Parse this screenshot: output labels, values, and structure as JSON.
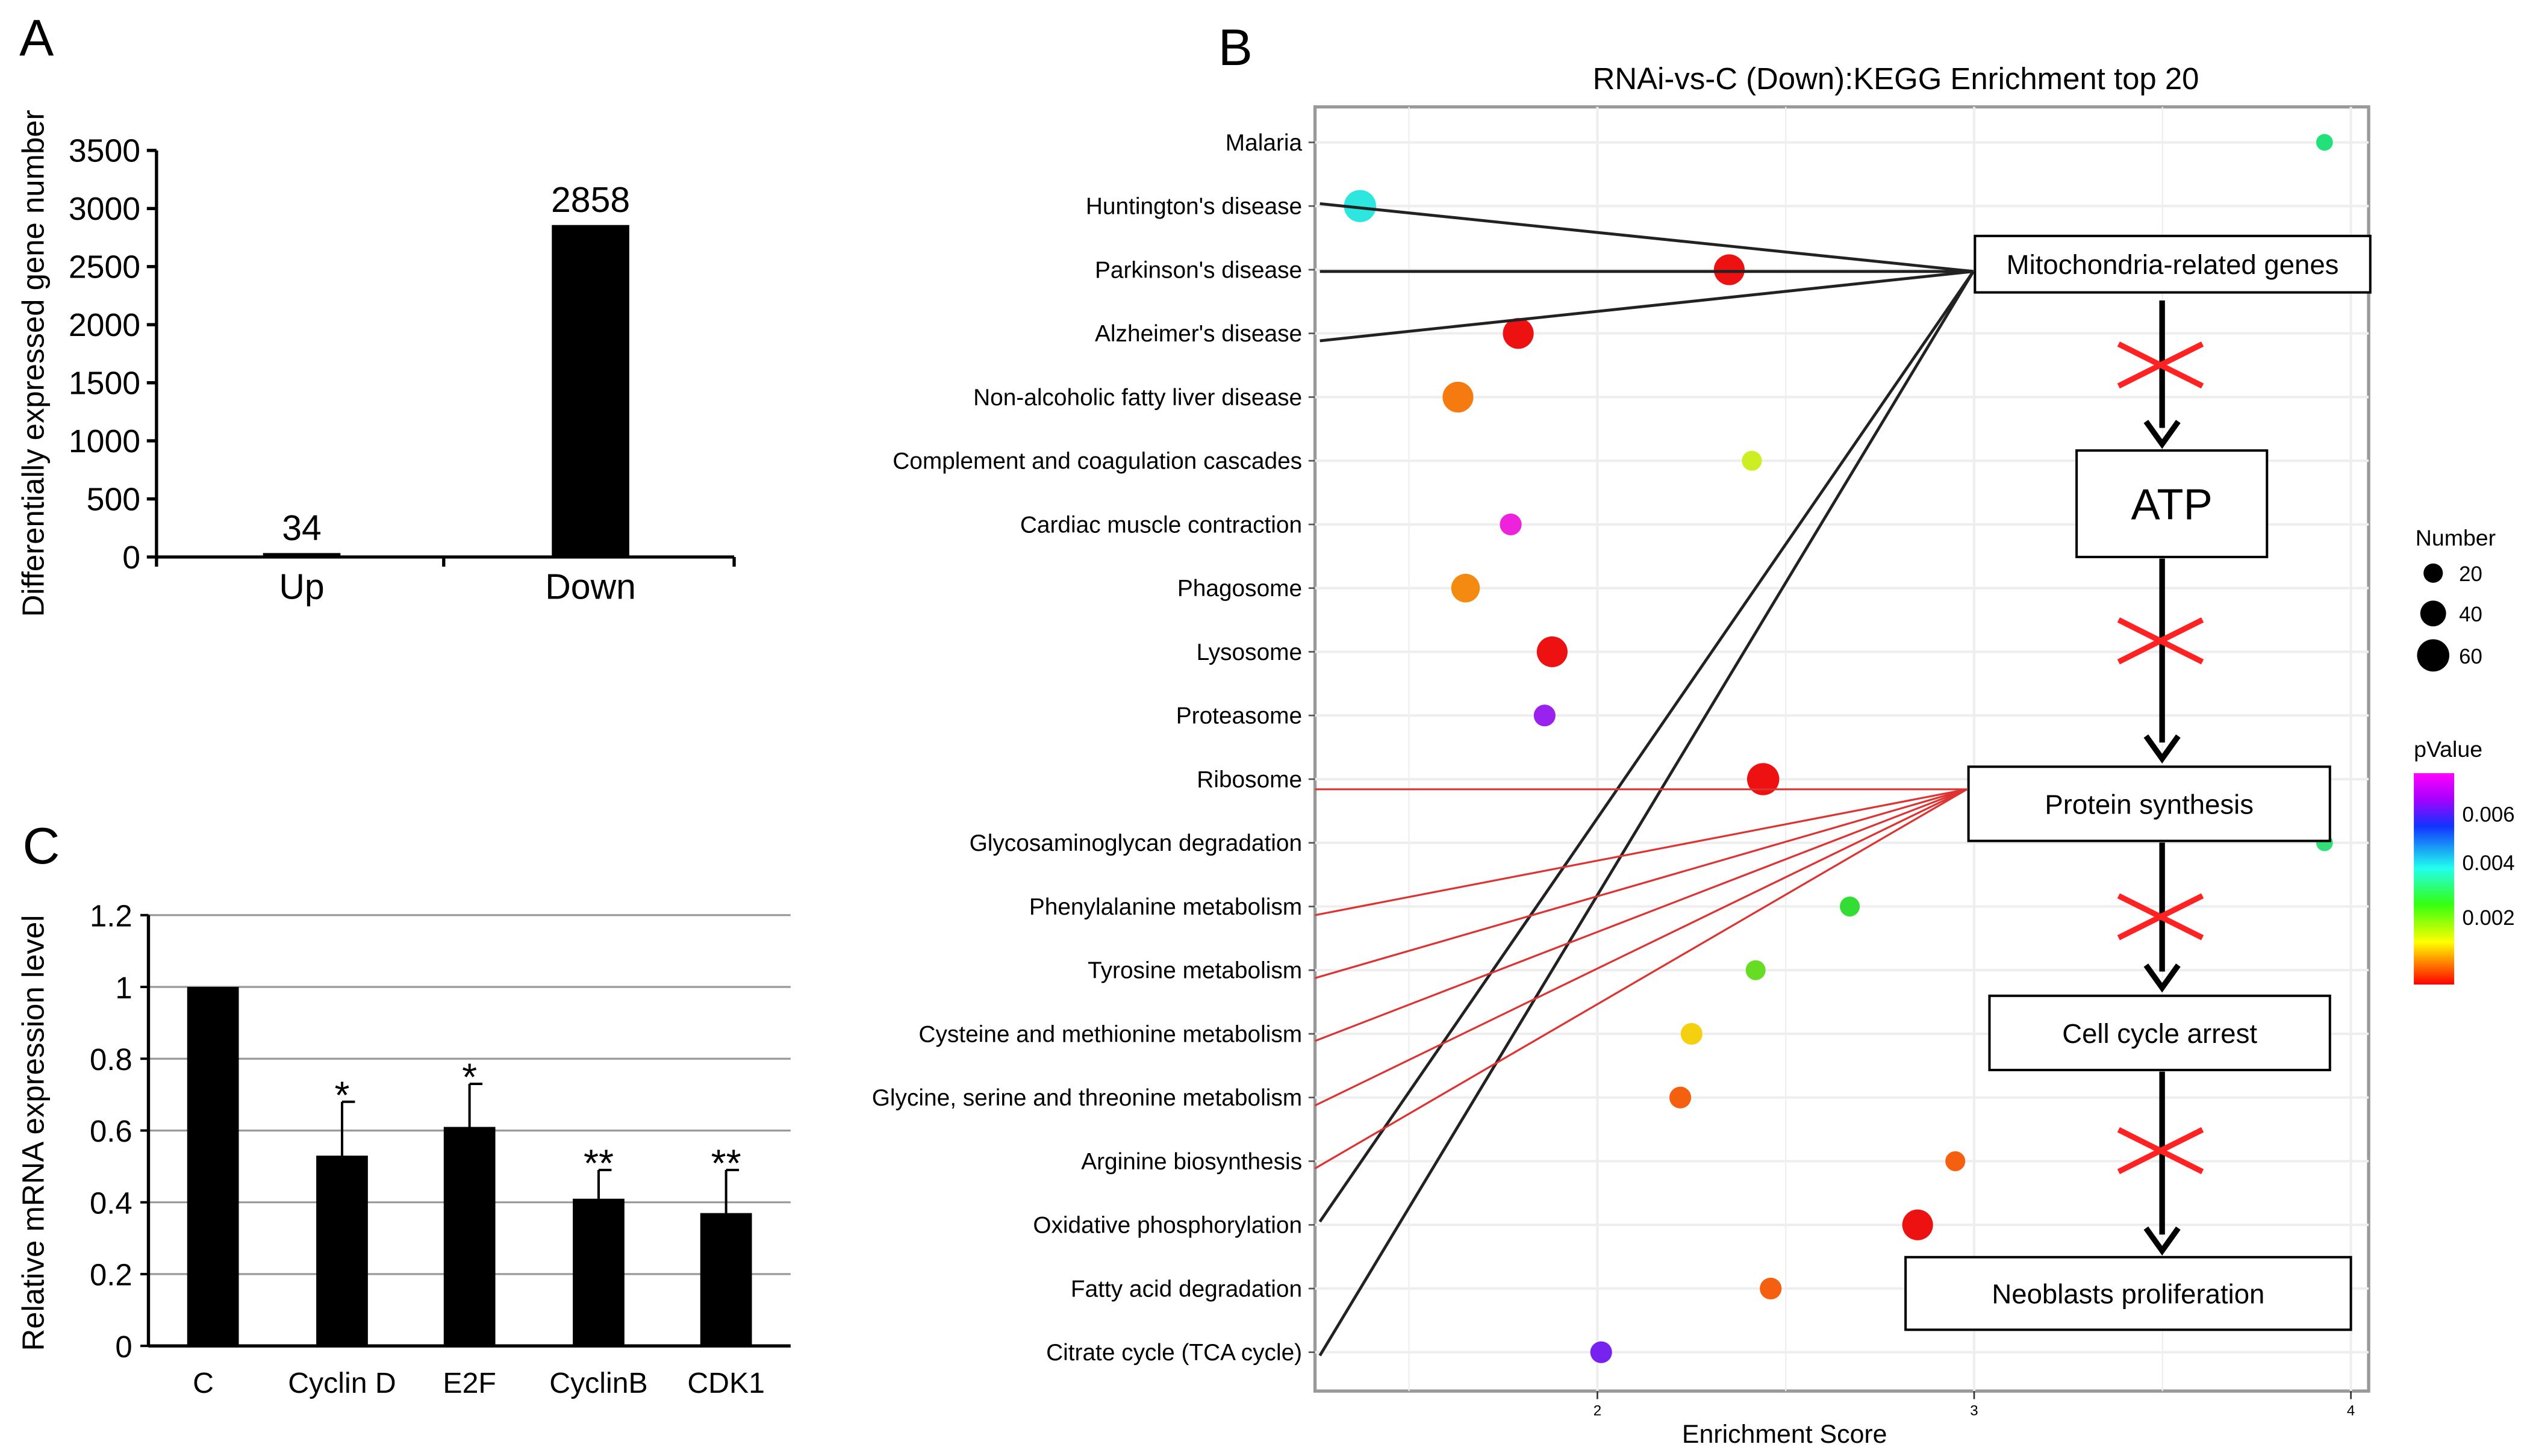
{
  "panel_letters": {
    "a": "A",
    "b": "B",
    "c": "C"
  },
  "chart_data": [
    {
      "type": "bar",
      "panel": "A",
      "categories": [
        "Up",
        "Down"
      ],
      "values": [
        34,
        2858
      ],
      "data_labels": [
        "34",
        "2858"
      ],
      "ylabel": "Differentially expressed gene number",
      "ylim": [
        0,
        3500
      ],
      "yticks": [
        "0",
        "500",
        "1000",
        "1500",
        "2000",
        "2500",
        "3000",
        "3500"
      ]
    },
    {
      "type": "scatter",
      "panel": "B",
      "title": "RNAi-vs-C (Down):KEGG Enrichment top 20",
      "xlabel": "Enrichment Score",
      "xlim": [
        1.25,
        4.05
      ],
      "xticks": [
        "2",
        "3",
        "4"
      ],
      "categories": [
        "Malaria",
        "Huntington's disease",
        "Parkinson's disease",
        "Alzheimer's disease",
        "Non-alcoholic fatty liver disease",
        "Complement and coagulation cascades",
        "Cardiac muscle contraction",
        "Phagosome",
        "Lysosome",
        "Proteasome",
        "Ribosome",
        "Glycosaminoglycan degradation",
        "Phenylalanine metabolism",
        "Tyrosine metabolism",
        "Cysteine and methionine metabolism",
        "Glycine, serine and threonine metabolism",
        "Arginine biosynthesis",
        "Oxidative phosphorylation",
        "Fatty acid degradation",
        "Citrate cycle (TCA cycle)"
      ],
      "x": [
        3.93,
        1.37,
        2.35,
        1.79,
        1.63,
        2.41,
        1.77,
        1.65,
        1.88,
        1.86,
        2.44,
        3.93,
        2.67,
        2.42,
        2.25,
        2.22,
        2.95,
        2.85,
        2.46,
        2.01
      ],
      "number": [
        8,
        62,
        55,
        55,
        55,
        15,
        20,
        45,
        55,
        20,
        62,
        8,
        15,
        15,
        20,
        20,
        15,
        55,
        20,
        20
      ],
      "pvalue": [
        0.0035,
        0.004,
        0.0001,
        0.0001,
        0.0004,
        0.0019,
        0.0072,
        0.0007,
        0.0001,
        0.0066,
        0.0001,
        0.0028,
        0.0025,
        0.0022,
        0.0014,
        0.0005,
        0.0004,
        0.0001,
        0.0005,
        0.0065
      ],
      "colors": [
        "#22e07a",
        "#2ee6e0",
        "#ee1111",
        "#ee1111",
        "#f57a10",
        "#ccee22",
        "#ee22dd",
        "#f58a10",
        "#ee1111",
        "#9922ee",
        "#ee1111",
        "#33dd77",
        "#33dd33",
        "#66dd22",
        "#f5d010",
        "#f56010",
        "#f56010",
        "#ee1111",
        "#f56010",
        "#7722ee"
      ],
      "legend": {
        "size_title": "Number",
        "size_labels": [
          "20",
          "40",
          "60"
        ],
        "color_title": "pValue",
        "color_labels": [
          "0.006",
          "0.004",
          "0.002"
        ]
      },
      "annotations": {
        "mito": "Mitochondria-related genes",
        "atp": "ATP",
        "protein": "Protein synthesis",
        "cellcycle": "Cell cycle arrest",
        "neoblasts": "Neoblasts proliferation"
      }
    },
    {
      "type": "bar",
      "panel": "C",
      "categories": [
        "C",
        "Cyclin D",
        "E2F",
        "CyclinB",
        "CDK1"
      ],
      "values": [
        1.0,
        0.53,
        0.61,
        0.41,
        0.37
      ],
      "error": [
        0,
        0.15,
        0.12,
        0.08,
        0.12
      ],
      "significance": [
        "",
        "*",
        "*",
        "**",
        "**"
      ],
      "ylabel": "Relative mRNA expression level",
      "ylim": [
        0,
        1.2
      ],
      "yticks": [
        "0",
        "0.2",
        "0.4",
        "0.6",
        "0.8",
        "1",
        "1.2"
      ],
      "grid": true
    }
  ]
}
